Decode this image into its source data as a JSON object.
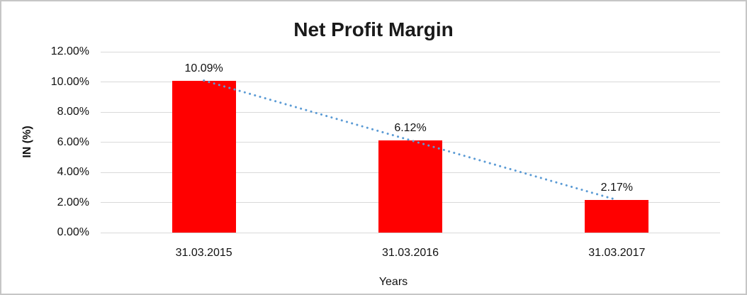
{
  "frame": {
    "background": "#ffffff",
    "border_color": "#c6c6c6"
  },
  "chart_data": {
    "type": "bar",
    "title": "Net Profit Margin",
    "xlabel": "Years",
    "ylabel": "IN (%)",
    "categories": [
      "31.03.2015",
      "31.03.2016",
      "31.03.2017"
    ],
    "values": [
      10.09,
      6.12,
      2.17
    ],
    "data_labels": [
      "10.09%",
      "6.12%",
      "2.17%"
    ],
    "ylim": [
      0,
      12
    ],
    "ytick_step": 2,
    "yticks": [
      "0.00%",
      "2.00%",
      "4.00%",
      "6.00%",
      "8.00%",
      "10.00%",
      "12.00%"
    ],
    "grid": true,
    "legend_position": "none",
    "bar_color": "#ff0000",
    "gridline_color": "#d9d9d9",
    "trendline": {
      "type": "linear",
      "style": "dotted",
      "color": "#5b9bd5",
      "from_value": 10.09,
      "to_value": 2.17
    }
  }
}
